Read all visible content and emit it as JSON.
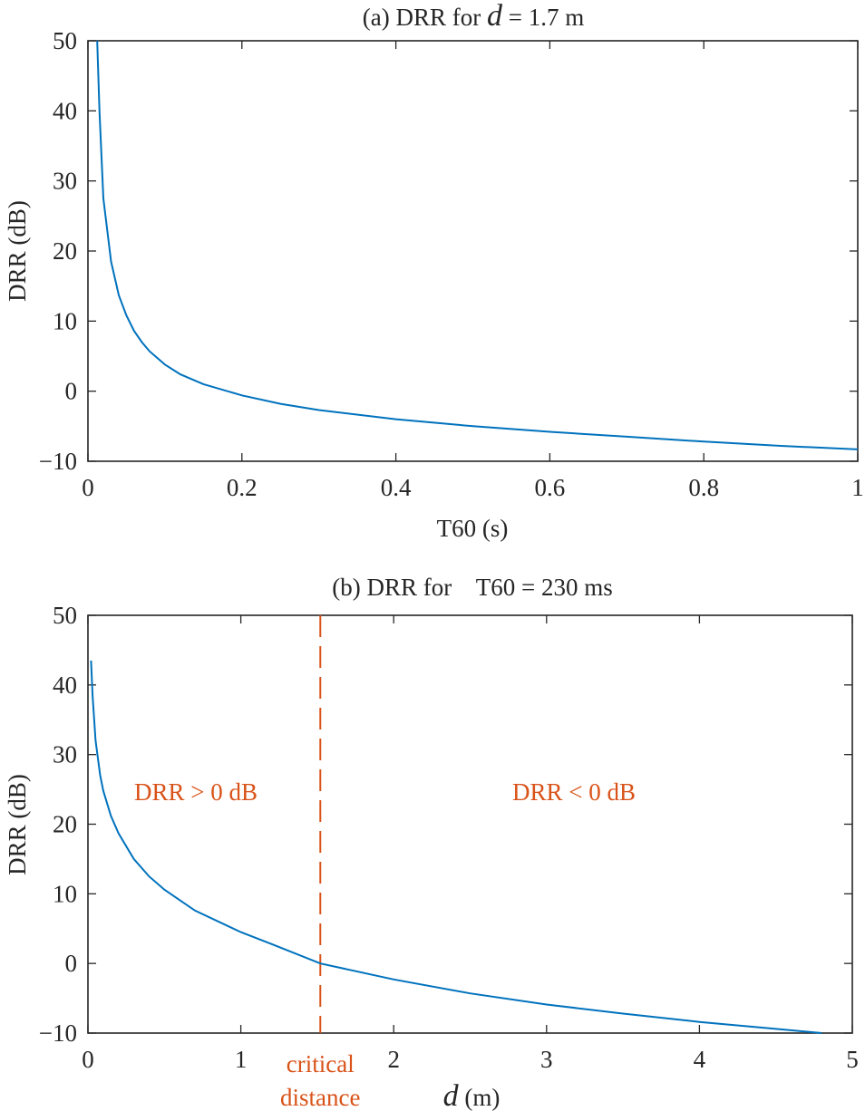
{
  "chart_data": [
    {
      "type": "line",
      "title_prefix": "(a) DRR for ",
      "title_var": "d",
      "title_suffix": " = 1.7 m",
      "xlabel": "T60 (s)",
      "ylabel": "DRR (dB)",
      "xlim": [
        0,
        1
      ],
      "ylim": [
        -10,
        50
      ],
      "xticks": [
        0,
        0.2,
        0.4,
        0.6,
        0.8,
        1
      ],
      "xtick_labels": [
        "0",
        "0.2",
        "0.4",
        "0.6",
        "0.8",
        "1"
      ],
      "yticks": [
        -10,
        0,
        10,
        20,
        30,
        40,
        50
      ],
      "ytick_labels": [
        "−10",
        "0",
        "10",
        "20",
        "30",
        "40",
        "50"
      ],
      "grid": false,
      "color": "#0072BD",
      "series": [
        {
          "x": [
            0.012,
            0.015,
            0.02,
            0.03,
            0.04,
            0.05,
            0.06,
            0.07,
            0.08,
            0.1,
            0.12,
            0.15,
            0.2,
            0.25,
            0.3,
            0.4,
            0.5,
            0.6,
            0.7,
            0.8,
            0.9,
            1.0
          ],
          "y": [
            50,
            40,
            27.5,
            18.5,
            13.7,
            10.8,
            8.6,
            7.0,
            5.7,
            3.8,
            2.4,
            1.0,
            -0.6,
            -1.8,
            -2.7,
            -4.0,
            -5.0,
            -5.8,
            -6.5,
            -7.2,
            -7.8,
            -8.3
          ]
        }
      ]
    },
    {
      "type": "line",
      "title": "(b) DRR for    T60 = 230 ms",
      "xlabel_var": "d",
      "xlabel_unit": " (m)",
      "ylabel": "DRR (dB)",
      "xlim": [
        0,
        5
      ],
      "ylim": [
        -10,
        50
      ],
      "xticks": [
        0,
        1,
        2,
        3,
        4,
        5
      ],
      "xtick_labels": [
        "0",
        "1",
        "2",
        "3",
        "4",
        "5"
      ],
      "yticks": [
        -10,
        0,
        10,
        20,
        30,
        40,
        50
      ],
      "ytick_labels": [
        "−10",
        "0",
        "10",
        "20",
        "30",
        "40",
        "50"
      ],
      "grid": false,
      "color": "#0072BD",
      "accent": "#D95319",
      "critical_distance": 1.52,
      "annotations": {
        "left_region": "DRR > 0 dB",
        "right_region": "DRR < 0 dB",
        "critical_line1": "critical",
        "critical_line2": "distance"
      },
      "series": [
        {
          "x": [
            0.02,
            0.03,
            0.05,
            0.08,
            0.1,
            0.15,
            0.2,
            0.3,
            0.4,
            0.5,
            0.7,
            1.0,
            1.2,
            1.52,
            2.0,
            2.5,
            3.0,
            3.5,
            4.0,
            4.5,
            4.8
          ],
          "y": [
            43.5,
            38.5,
            32.0,
            27.0,
            24.8,
            21.2,
            18.7,
            15.0,
            12.5,
            10.6,
            7.6,
            4.5,
            2.8,
            0.0,
            -2.3,
            -4.3,
            -5.9,
            -7.2,
            -8.4,
            -9.4,
            -10.0
          ]
        }
      ]
    }
  ]
}
